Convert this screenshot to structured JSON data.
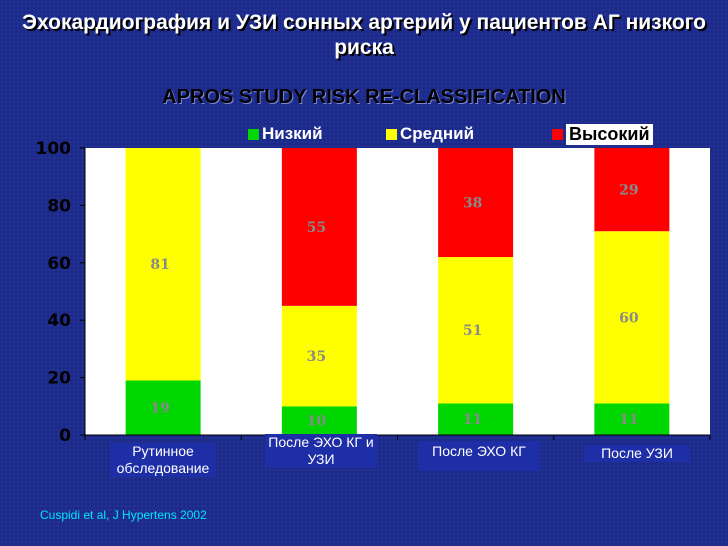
{
  "slide": {
    "title": "Эхокардиография и УЗИ сонных артерий у пациентов АГ низкого риска",
    "citation": "Cuspidi  et al, J Hypertens  2002"
  },
  "chart_data": {
    "type": "bar",
    "stacked": true,
    "title": "APROS STUDY RISK RE-CLASSIFICATION",
    "categories": [
      "Рутинное обследование",
      "После ЭХО КГ и УЗИ",
      "После ЭХО КГ",
      "После УЗИ"
    ],
    "series": [
      {
        "name": "Низкий",
        "color": "#00d600",
        "values": [
          19,
          10,
          11,
          11
        ]
      },
      {
        "name": "Средний",
        "color": "#ffff00",
        "values": [
          81,
          35,
          51,
          60
        ]
      },
      {
        "name": "Высокий",
        "color": "#ff0000",
        "values": [
          0,
          55,
          38,
          29
        ]
      }
    ],
    "ylim": [
      0,
      100
    ],
    "yticks": [
      0,
      20,
      40,
      60,
      80,
      100
    ],
    "legend": "top",
    "grid": false
  },
  "colors": {
    "background": "#1c2a8c",
    "plot_area": "#ffffff",
    "low": "#00d600",
    "medium": "#ffff00",
    "high": "#ff0000",
    "category_box": "#1e2ea6"
  }
}
